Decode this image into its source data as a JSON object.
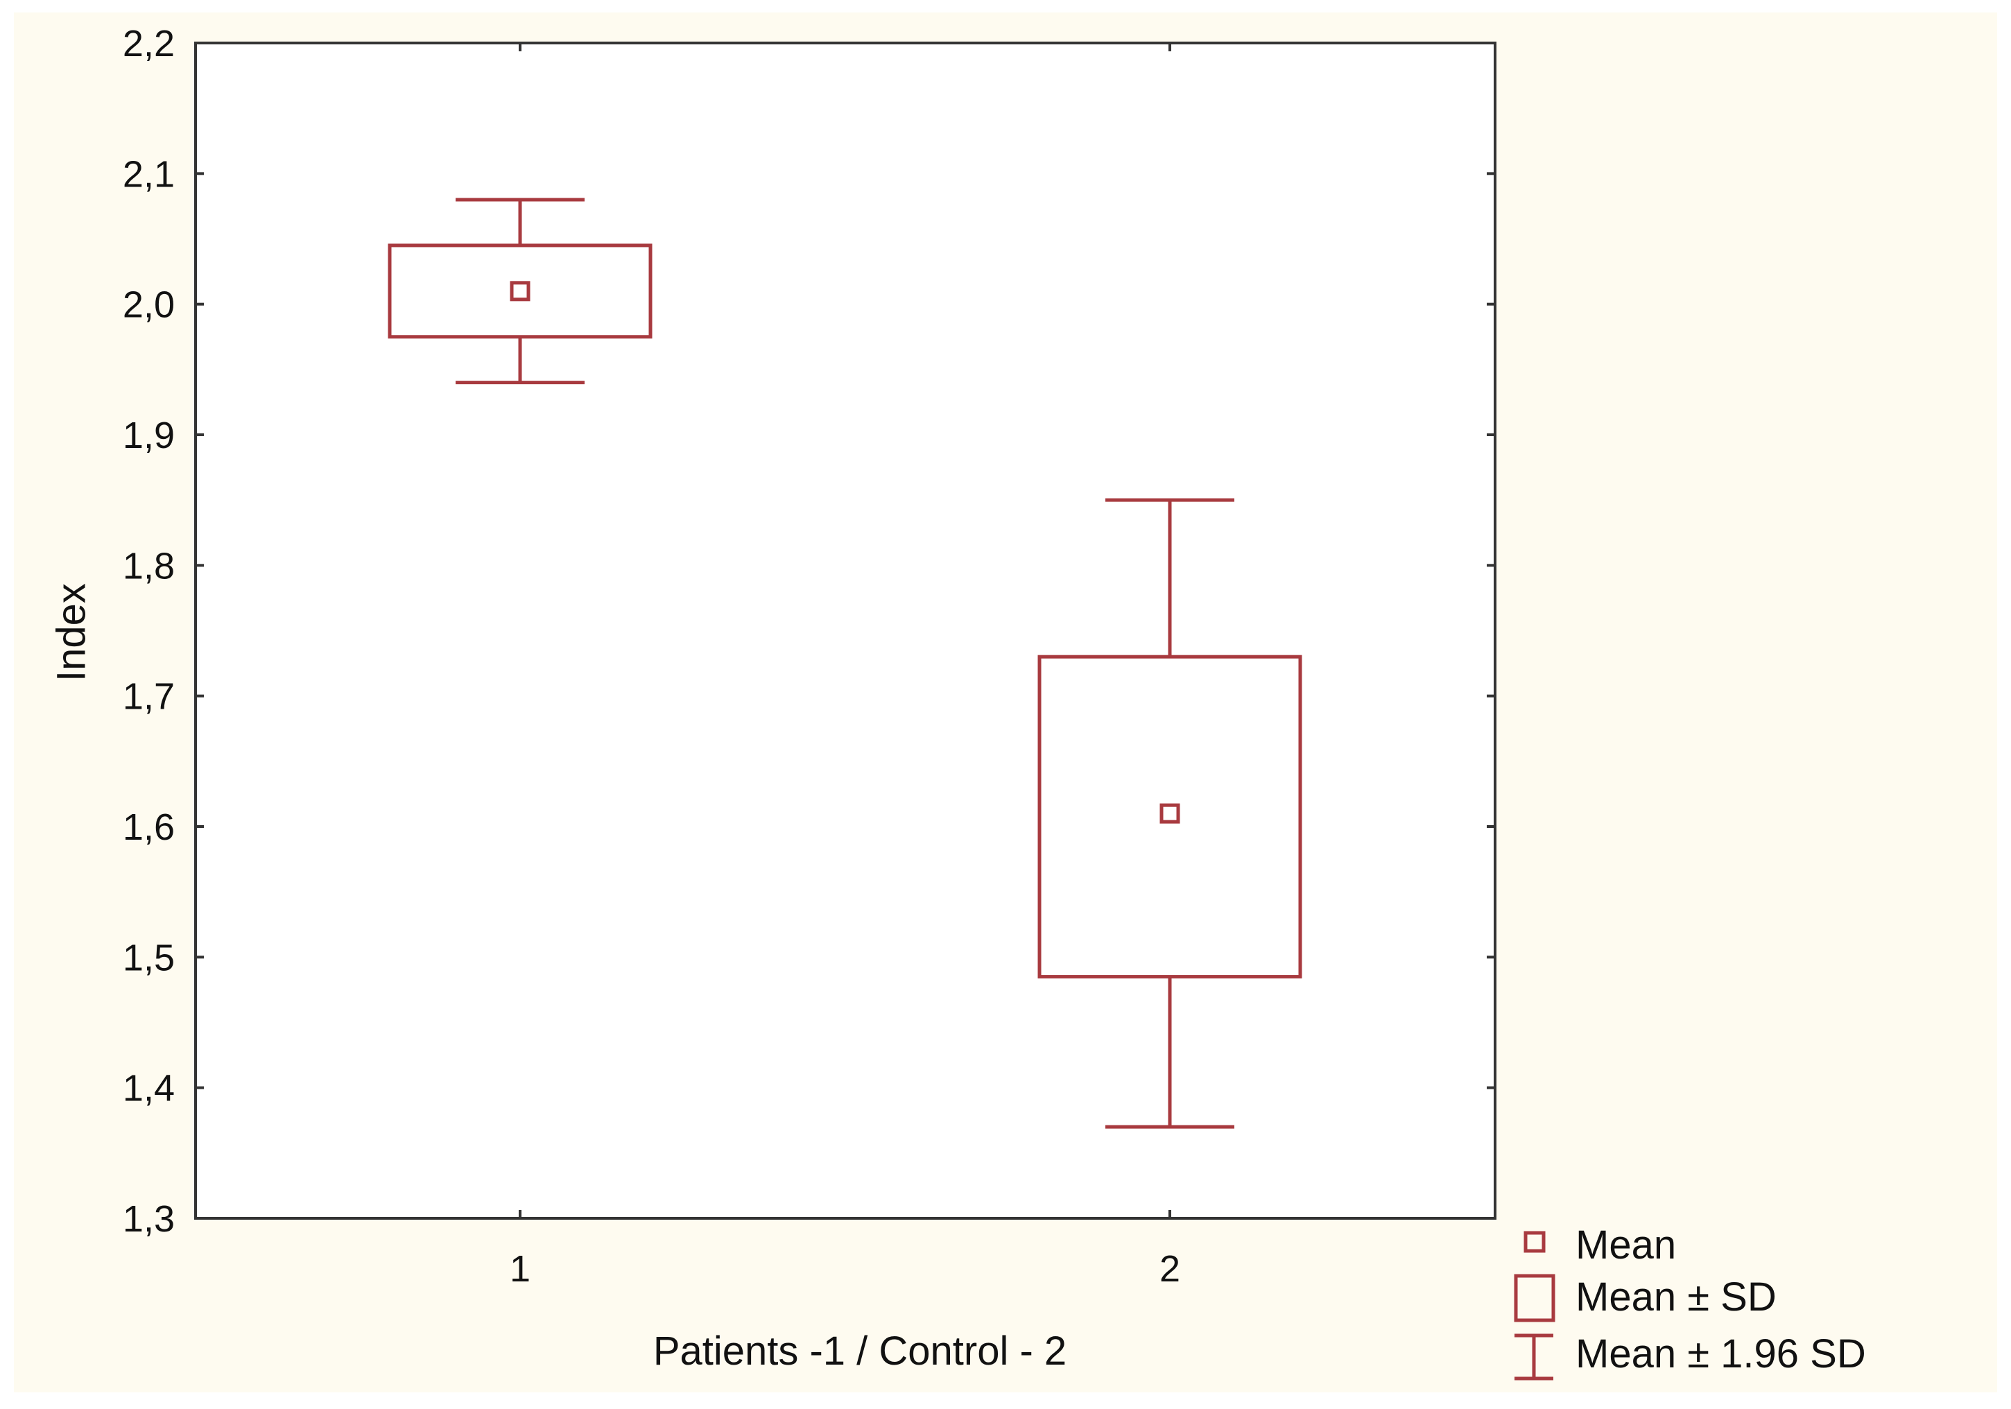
{
  "chart_data": {
    "type": "boxplot",
    "xlabel": "Patients -1 / Control - 2",
    "ylabel": "Index",
    "ylim": [
      1.3,
      2.2
    ],
    "y_ticks": [
      1.3,
      1.4,
      1.5,
      1.6,
      1.7,
      1.8,
      1.9,
      2.0,
      2.1,
      2.2
    ],
    "y_tick_labels": [
      "1,3",
      "1,4",
      "1,5",
      "1,6",
      "1,7",
      "1,8",
      "1,9",
      "2,0",
      "2,1",
      "2,2"
    ],
    "categories": [
      "1",
      "2"
    ],
    "groups": [
      {
        "label": "1",
        "mean": 2.01,
        "sd_low": 1.975,
        "sd_high": 2.045,
        "ci_low": 1.94,
        "ci_high": 2.08
      },
      {
        "label": "2",
        "mean": 1.61,
        "sd_low": 1.485,
        "sd_high": 1.73,
        "ci_low": 1.37,
        "ci_high": 1.85
      }
    ],
    "grid": true,
    "legend": {
      "position": "bottom-right",
      "items": [
        "Mean",
        "Mean ± SD",
        "Mean ± 1.96 SD"
      ]
    },
    "colors": {
      "series": "#a83a3f",
      "grid": "#d4d4d4",
      "axis": "#333333"
    }
  }
}
